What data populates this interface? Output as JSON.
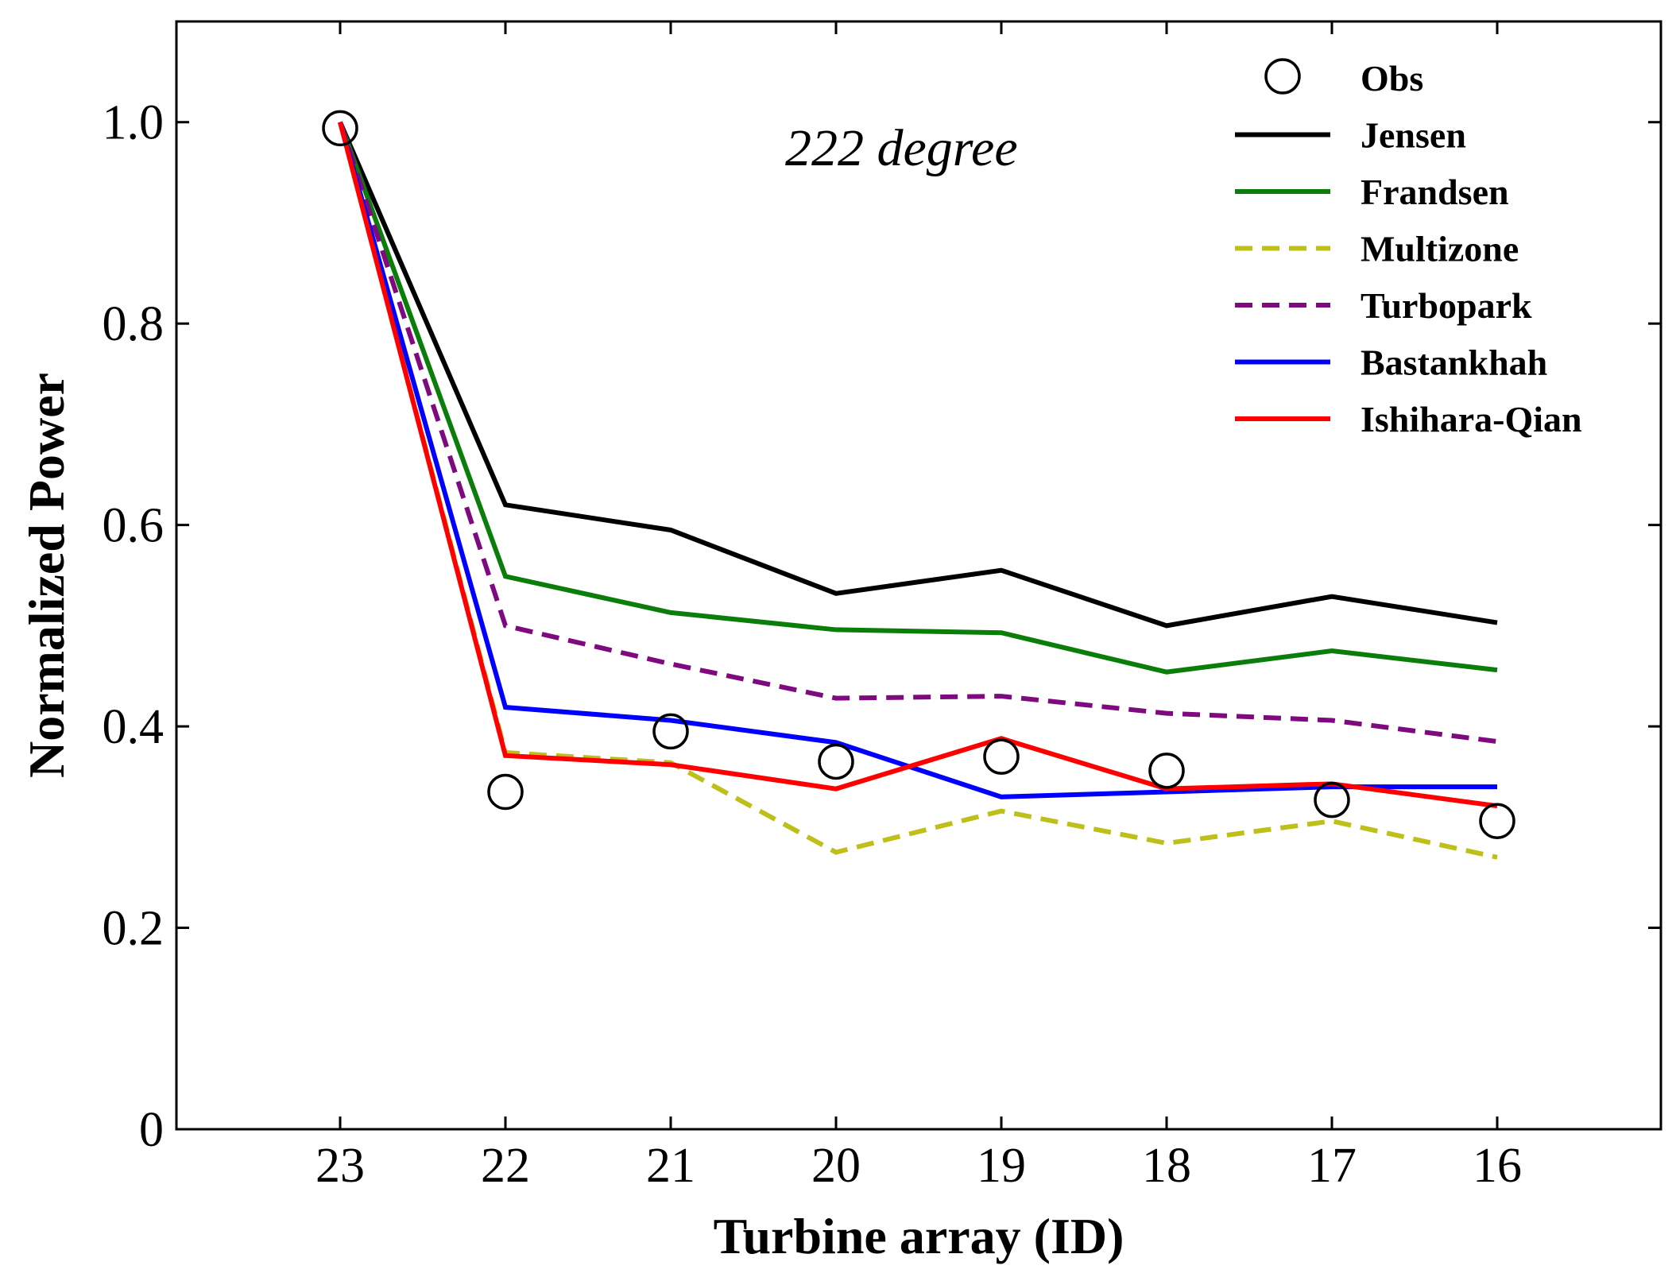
{
  "chart_data": {
    "type": "line",
    "xlabel": "Turbine array (ID)",
    "ylabel": "Normalized Power",
    "annotation": "222 degree",
    "categories": [
      "23",
      "22",
      "21",
      "20",
      "19",
      "18",
      "17",
      "16"
    ],
    "ylim": [
      0,
      1.1
    ],
    "yticks": [
      {
        "value": 0,
        "label": "0"
      },
      {
        "value": 0.2,
        "label": "0.2"
      },
      {
        "value": 0.4,
        "label": "0.4"
      },
      {
        "value": 0.6,
        "label": "0.6"
      },
      {
        "value": 0.8,
        "label": "0.8"
      },
      {
        "value": 1.0,
        "label": "1.0"
      }
    ],
    "legend_position": "top-right",
    "grid": false,
    "series": [
      {
        "name": "Obs",
        "style": "markers",
        "marker": "open-circle",
        "color": "#000000",
        "values": [
          0.994,
          0.335,
          0.395,
          0.365,
          0.37,
          0.356,
          0.327,
          0.306
        ]
      },
      {
        "name": "Jensen",
        "style": "solid",
        "color": "#000000",
        "values": [
          1.0,
          0.62,
          0.595,
          0.532,
          0.555,
          0.5,
          0.529,
          0.503
        ]
      },
      {
        "name": "Frandsen",
        "style": "solid",
        "color": "#0a7d0a",
        "values": [
          1.0,
          0.549,
          0.513,
          0.496,
          0.493,
          0.454,
          0.475,
          0.456
        ]
      },
      {
        "name": "Multizone",
        "style": "dashed",
        "color": "#bfbf1a",
        "values": [
          1.0,
          0.374,
          0.364,
          0.275,
          0.316,
          0.284,
          0.306,
          0.27
        ]
      },
      {
        "name": "Turbopark",
        "style": "dashed",
        "color": "#7f0a7f",
        "values": [
          1.0,
          0.5,
          0.462,
          0.428,
          0.43,
          0.413,
          0.406,
          0.385
        ]
      },
      {
        "name": "Bastankhah",
        "style": "solid",
        "color": "#0000ff",
        "values": [
          1.0,
          0.419,
          0.406,
          0.384,
          0.33,
          0.335,
          0.34,
          0.34
        ]
      },
      {
        "name": "Ishihara-Qian",
        "style": "solid",
        "color": "#ff0000",
        "values": [
          1.0,
          0.371,
          0.362,
          0.338,
          0.388,
          0.338,
          0.343,
          0.321
        ]
      }
    ]
  }
}
